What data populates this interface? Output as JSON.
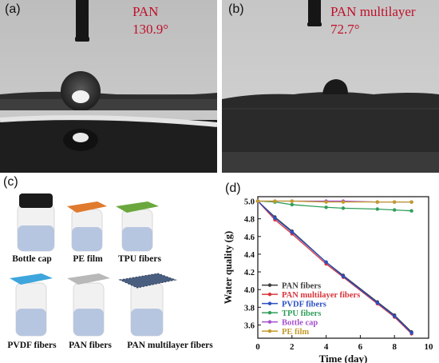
{
  "panels": {
    "a": {
      "label": "(a)",
      "material": "PAN",
      "angle": "130.9°"
    },
    "b": {
      "label": "(b)",
      "material": "PAN multilayer",
      "angle": "72.7°"
    },
    "c": {
      "label": "(c)",
      "items": [
        {
          "name": "Bottle cap",
          "cover": "#1b1b1b"
        },
        {
          "name": "PE film",
          "cover": "#e07a2e"
        },
        {
          "name": "TPU fibers",
          "cover": "#6aa83d"
        },
        {
          "name": "PVDF fibers",
          "cover": "#3ea6dc"
        },
        {
          "name": "PAN fibers",
          "cover": "#b8b8b8"
        },
        {
          "name": "PAN multilayer fibers",
          "cover": "#4a5f80"
        }
      ]
    }
  },
  "chart_data": {
    "type": "line",
    "panel_label": "(d)",
    "xlabel": "Time (day)",
    "ylabel": "Water quality (g)",
    "xlim": [
      0,
      10
    ],
    "ylim": [
      3.45,
      5.05
    ],
    "xticks": [
      "0",
      "2",
      "4",
      "6",
      "8",
      "10"
    ],
    "yticks": [
      "3.6",
      "3.8",
      "4.0",
      "4.2",
      "4.4",
      "4.6",
      "4.8",
      "5.0"
    ],
    "legend_position": "bottom-left",
    "series": [
      {
        "name": "PAN fibers",
        "color": "#3a3a3a",
        "x": [
          0,
          1,
          2,
          4,
          5,
          7,
          8,
          9
        ],
        "y": [
          5.0,
          4.82,
          4.66,
          4.31,
          4.16,
          3.86,
          3.71,
          3.52
        ]
      },
      {
        "name": "PAN multilayer fibers",
        "color": "#d8343a",
        "x": [
          0,
          1,
          2,
          4,
          5,
          7,
          8,
          9
        ],
        "y": [
          5.0,
          4.79,
          4.63,
          4.29,
          4.14,
          3.84,
          3.69,
          3.5
        ]
      },
      {
        "name": "PVDF fibers",
        "color": "#2a4fc4",
        "x": [
          0,
          1,
          2,
          4,
          5,
          7,
          8,
          9
        ],
        "y": [
          5.0,
          4.81,
          4.65,
          4.31,
          4.15,
          3.85,
          3.7,
          3.51
        ]
      },
      {
        "name": "TPU fibers",
        "color": "#2f9e5a",
        "x": [
          0,
          1,
          2,
          4,
          5,
          7,
          8,
          9
        ],
        "y": [
          5.0,
          4.99,
          4.96,
          4.93,
          4.92,
          4.91,
          4.9,
          4.89
        ]
      },
      {
        "name": "Bottle cap",
        "color": "#a54fd0",
        "x": [
          0,
          1,
          2,
          4,
          5,
          7,
          8,
          9
        ],
        "y": [
          5.0,
          5.0,
          5.0,
          5.0,
          5.0,
          4.99,
          4.99,
          4.99
        ]
      },
      {
        "name": "PE film",
        "color": "#c29a2a",
        "x": [
          0,
          1,
          2,
          4,
          5,
          7,
          8,
          9
        ],
        "y": [
          5.0,
          5.0,
          5.0,
          4.99,
          4.99,
          4.99,
          4.99,
          4.99
        ]
      }
    ]
  }
}
